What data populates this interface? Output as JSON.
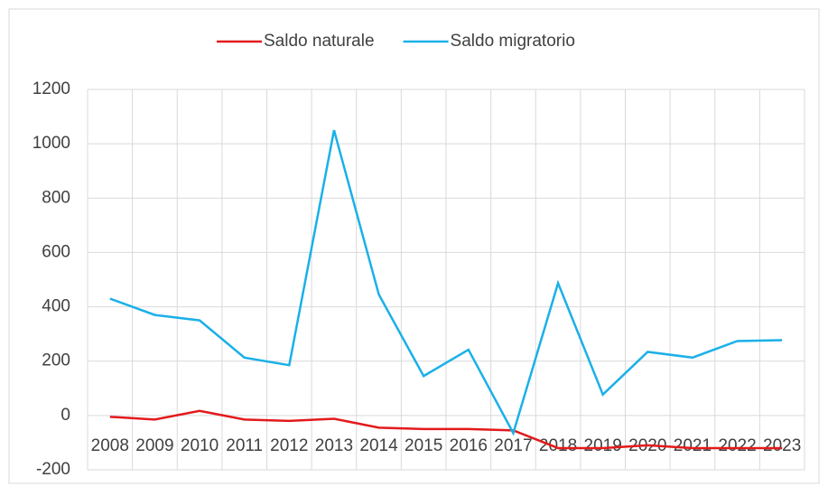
{
  "chart_data": {
    "type": "line",
    "categories": [
      "2008",
      "2009",
      "2010",
      "2011",
      "2012",
      "2013",
      "2014",
      "2015",
      "2016",
      "2017",
      "2018",
      "2019",
      "2020",
      "2021",
      "2022",
      "2023"
    ],
    "series": [
      {
        "name": "Saldo naturale",
        "color": "#e31a1c",
        "values": [
          -5,
          -15,
          17,
          -15,
          -20,
          -12,
          -45,
          -50,
          -50,
          -55,
          -120,
          -120,
          -110,
          -120,
          -120,
          -120
        ]
      },
      {
        "name": "Saldo migratorio",
        "color": "#1ab0e8",
        "values": [
          430,
          370,
          350,
          213,
          185,
          1050,
          445,
          145,
          242,
          -65,
          487,
          77,
          234,
          213,
          274,
          277
        ]
      }
    ],
    "ylim": [
      -200,
      1200
    ],
    "yticks": [
      -200,
      0,
      200,
      400,
      600,
      800,
      1000,
      1200
    ],
    "grid": true,
    "legend": "top"
  }
}
